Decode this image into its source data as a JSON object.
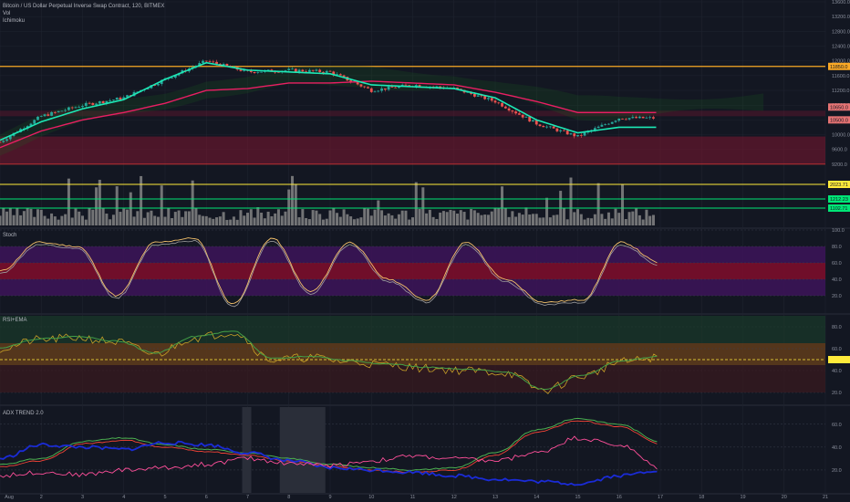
{
  "header": {
    "symbol": "Bitcoin / US Dollar Perpetual Inverse Swap Contract, 120, BITMEX",
    "indicators": [
      "Vol",
      "Ichimoku"
    ]
  },
  "panes": {
    "stoch": "Stoch",
    "rsi": "RSI+EMA",
    "adx": "ADX TREND 2.0"
  },
  "colors": {
    "background": "#131722",
    "grid": "#1f2430",
    "candle_up": "#26a69a",
    "candle_down": "#ef5350",
    "tenkan": "#1de9b6",
    "kijun": "#e91e63",
    "level_orange": "#f9a825",
    "level_yellow": "#ffeb3b",
    "level_green": "#00e676",
    "stoch_red": "#7b0d2b",
    "stoch_purple": "#3b1456",
    "rsi_orange": "#5c3a1c",
    "adx_green": "#4caf50",
    "adx_red": "#f44336",
    "adx_blue": "#1a2bd6",
    "adx_pink": "#ff4f9a"
  },
  "chart_data": [
    {
      "type": "candlestick",
      "title": "Bitcoin / US Dollar Perpetual Inverse Swap Contract, 120, BITMEX",
      "x_ticks": [
        "Aug",
        "2",
        "3",
        "4",
        "5",
        "6",
        "7",
        "8",
        "9",
        "10",
        "11",
        "12",
        "13",
        "14",
        "15",
        "16",
        "17",
        "18",
        "19",
        "20",
        "21"
      ],
      "y_ticks": [
        13600,
        13200,
        12800,
        12400,
        12000,
        11600,
        11200,
        10800,
        10400,
        10000,
        9600,
        9200
      ],
      "ylim": [
        8950,
        13650
      ],
      "price_labels": [
        "11850.0",
        "10650.0",
        "10500.0"
      ],
      "volume_labels": [
        "2023.71",
        "1212.23",
        "1102.71"
      ],
      "levels": [
        11850,
        10500,
        9200
      ],
      "close_series": [
        [
          "Aug",
          9800
        ],
        [
          "2",
          10500
        ],
        [
          "3",
          10800
        ],
        [
          "4",
          11000
        ],
        [
          "5",
          11500
        ],
        [
          "6",
          12000
        ],
        [
          "7",
          11700
        ],
        [
          "8",
          11750
        ],
        [
          "9",
          11700
        ],
        [
          "10",
          11200
        ],
        [
          "11",
          11350
        ],
        [
          "12",
          11250
        ],
        [
          "13",
          10900
        ],
        [
          "14",
          10300
        ],
        [
          "15",
          9950
        ],
        [
          "16",
          10450
        ]
      ],
      "tenkan_series": [
        [
          "Aug",
          9850
        ],
        [
          "2",
          10350
        ],
        [
          "3",
          10700
        ],
        [
          "4",
          10950
        ],
        [
          "5",
          11500
        ],
        [
          "6",
          11950
        ],
        [
          "7",
          11750
        ],
        [
          "8",
          11700
        ],
        [
          "9",
          11650
        ],
        [
          "10",
          11350
        ],
        [
          "11",
          11300
        ],
        [
          "12",
          11250
        ],
        [
          "13",
          11000
        ],
        [
          "14",
          10400
        ],
        [
          "15",
          10050
        ],
        [
          "16",
          10200
        ]
      ],
      "kijun_series": [
        [
          "Aug",
          9650
        ],
        [
          "2",
          10100
        ],
        [
          "3",
          10400
        ],
        [
          "4",
          10600
        ],
        [
          "5",
          10850
        ],
        [
          "6",
          11200
        ],
        [
          "7",
          11250
        ],
        [
          "8",
          11400
        ],
        [
          "9",
          11400
        ],
        [
          "10",
          11450
        ],
        [
          "11",
          11400
        ],
        [
          "12",
          11350
        ],
        [
          "13",
          11150
        ],
        [
          "14",
          10900
        ],
        [
          "15",
          10600
        ],
        [
          "16",
          10600
        ]
      ]
    },
    {
      "type": "line",
      "title": "Stoch",
      "y_ticks": [
        100.0,
        80.0,
        60.0,
        40.0,
        20.0
      ],
      "ylim": [
        0,
        100
      ],
      "bands": [
        [
          60,
          80
        ],
        [
          40,
          60
        ],
        [
          20,
          40
        ]
      ],
      "series": [
        {
          "values": [
            50,
            85,
            80,
            20,
            85,
            90,
            10,
            90,
            25,
            85,
            40,
            15,
            85,
            40,
            12,
            15,
            85,
            60
          ]
        }
      ]
    },
    {
      "type": "line",
      "title": "RSI+EMA",
      "y_ticks": [
        80.0,
        60.0,
        40.0,
        20.0
      ],
      "ylim": [
        10,
        90
      ],
      "bands": [
        [
          45,
          65
        ]
      ],
      "series": [
        {
          "values": [
            60,
            68,
            70,
            66,
            55,
            70,
            75,
            50,
            52,
            48,
            45,
            42,
            40,
            38,
            22,
            35,
            48,
            52
          ]
        }
      ]
    },
    {
      "type": "line",
      "title": "ADX TREND 2.0",
      "y_ticks": [
        60.0,
        40.0,
        20.0
      ],
      "ylim": [
        0,
        75
      ],
      "series": [
        {
          "values": [
            25,
            30,
            45,
            48,
            42,
            38,
            35,
            30,
            25,
            22,
            20,
            22,
            35,
            55,
            65,
            60,
            45
          ]
        },
        {
          "values": [
            30,
            42,
            40,
            38,
            44,
            42,
            35,
            28,
            22,
            20,
            18,
            15,
            12,
            10,
            8,
            15,
            20
          ]
        },
        {
          "values": [
            15,
            18,
            16,
            20,
            22,
            25,
            30,
            26,
            24,
            28,
            32,
            30,
            28,
            35,
            48,
            42,
            22
          ]
        }
      ]
    }
  ]
}
